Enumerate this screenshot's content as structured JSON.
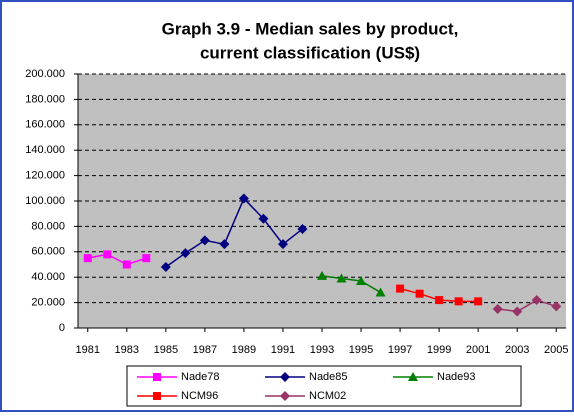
{
  "chart_data": {
    "type": "line",
    "title": [
      "Graph  3.9 - Median sales by product,",
      "current classification (US$)"
    ],
    "x": [
      1981,
      1982,
      1983,
      1984,
      1985,
      1986,
      1987,
      1988,
      1989,
      1990,
      1991,
      1992,
      1993,
      1994,
      1995,
      1996,
      1997,
      1998,
      1999,
      2000,
      2001,
      2002,
      2003,
      2004,
      2005
    ],
    "xlim": [
      1980.5,
      2005.5
    ],
    "xticks": [
      1981,
      1983,
      1985,
      1987,
      1989,
      1991,
      1993,
      1995,
      1997,
      1999,
      2001,
      2003,
      2005
    ],
    "ylim": [
      0,
      200000
    ],
    "yticks": [
      0,
      {
        "value": 20000,
        "label": "20.000"
      },
      {
        "value": 40000,
        "label": "40.000"
      },
      {
        "value": 60000,
        "label": "60.000"
      },
      {
        "value": 80000,
        "label": "80.000"
      },
      {
        "value": 100000,
        "label": "100.000"
      },
      {
        "value": 120000,
        "label": "120.000"
      },
      {
        "value": 140000,
        "label": "140.000"
      },
      {
        "value": 160000,
        "label": "160.000"
      },
      {
        "value": 180000,
        "label": "180.000"
      },
      {
        "value": 200000,
        "label": "200.000"
      }
    ],
    "grid": true,
    "series": [
      {
        "name": "Nade78",
        "color": "#ff00ff",
        "marker": "square",
        "values": [
          55000,
          58000,
          50000,
          55000,
          null,
          null,
          null,
          null,
          null,
          null,
          null,
          null,
          null,
          null,
          null,
          null,
          null,
          null,
          null,
          null,
          null,
          null,
          null,
          null,
          null
        ]
      },
      {
        "name": "Nade85",
        "color": "#000080",
        "marker": "diamond",
        "values": [
          null,
          null,
          null,
          null,
          48000,
          59000,
          69000,
          66000,
          102000,
          86000,
          66000,
          78000,
          null,
          null,
          null,
          null,
          null,
          null,
          null,
          null,
          null,
          null,
          null,
          null,
          null
        ]
      },
      {
        "name": "Nade93",
        "color": "#008000",
        "marker": "triangle",
        "values": [
          null,
          null,
          null,
          null,
          null,
          null,
          null,
          null,
          null,
          null,
          null,
          null,
          41000,
          39000,
          37000,
          28000,
          null,
          null,
          null,
          null,
          null,
          null,
          null,
          null,
          null
        ]
      },
      {
        "name": "NCM96",
        "color": "#ff0000",
        "marker": "square",
        "values": [
          null,
          null,
          null,
          null,
          null,
          null,
          null,
          null,
          null,
          null,
          null,
          null,
          null,
          null,
          null,
          null,
          31000,
          27000,
          22000,
          21000,
          21000,
          null,
          null,
          null,
          null
        ]
      },
      {
        "name": "NCM02",
        "color": "#993366",
        "marker": "diamond",
        "values": [
          null,
          null,
          null,
          null,
          null,
          null,
          null,
          null,
          null,
          null,
          null,
          null,
          null,
          null,
          null,
          null,
          null,
          null,
          null,
          null,
          null,
          15000,
          13000,
          22000,
          17000
        ]
      }
    ]
  }
}
